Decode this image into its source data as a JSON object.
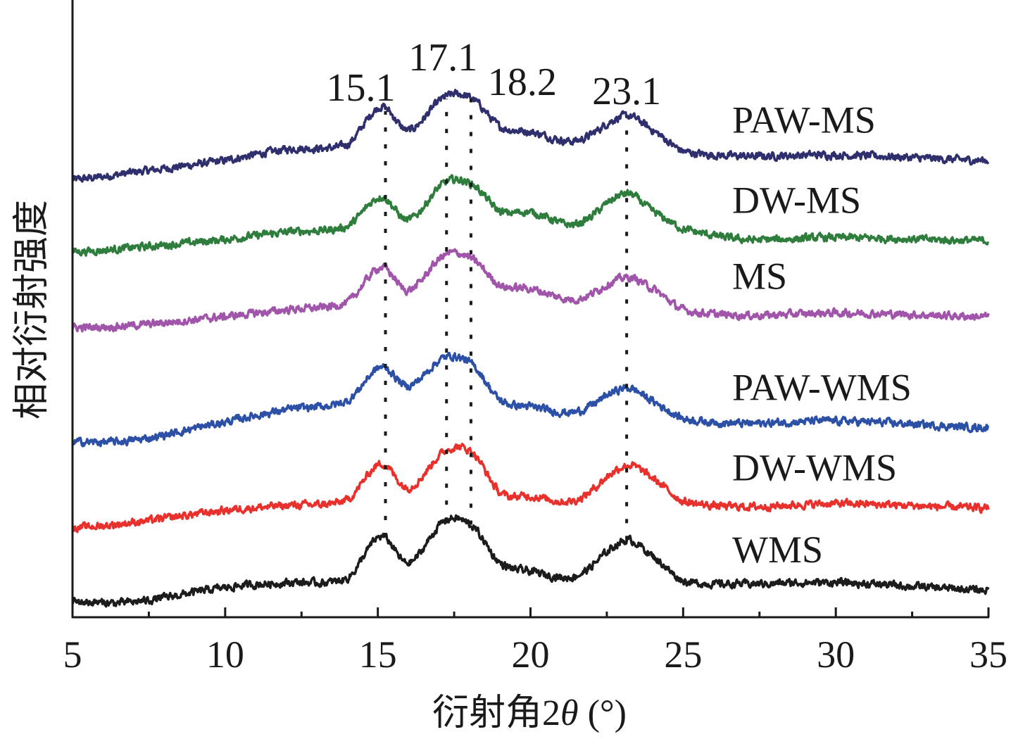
{
  "chart_data": {
    "type": "line",
    "title": "",
    "xlabel": "衍射角2θ (°)",
    "xlabel_parts": {
      "prefix": "衍射角2",
      "theta": "θ",
      "suffix": " (°)"
    },
    "ylabel": "相对衍射强度",
    "xlim": [
      5,
      35
    ],
    "ylim": [
      0,
      100
    ],
    "x_ticks": [
      5,
      10,
      15,
      20,
      25,
      30,
      35
    ],
    "x_tick_labels": [
      "5",
      "10",
      "15",
      "20",
      "25",
      "30",
      "35"
    ],
    "x_minor_ticks": [
      7.5,
      12.5,
      17.5,
      22.5,
      27.5,
      32.5
    ],
    "grid": false,
    "legend": "inline-right",
    "x": [
      5,
      7,
      10,
      12,
      14,
      15.1,
      16,
      17.2,
      18.1,
      19,
      20,
      21.5,
      23.1,
      24,
      25,
      27,
      30,
      35
    ],
    "series": [
      {
        "name": "PAW-MS",
        "color": "#2f2f6e",
        "values": [
          70.9,
          72.1,
          74.0,
          75.8,
          76.6,
          82.7,
          78.9,
          84.3,
          84.0,
          79.5,
          78.6,
          77.2,
          81.2,
          78.9,
          75.5,
          74.7,
          74.9,
          74.0
        ]
      },
      {
        "name": "DW-MS",
        "color": "#2f7d3c",
        "values": [
          59.2,
          59.9,
          61.2,
          62.4,
          63.3,
          68.1,
          64.4,
          70.4,
          70.1,
          65.8,
          65.6,
          63.7,
          68.6,
          65.8,
          62.9,
          61.2,
          61.5,
          61.0
        ]
      },
      {
        "name": "MS",
        "color": "#a055aa",
        "values": [
          46.9,
          47.3,
          48.7,
          49.8,
          51.0,
          56.7,
          53.0,
          58.7,
          58.0,
          53.8,
          53.2,
          51.5,
          55.0,
          53.2,
          49.8,
          48.9,
          49.3,
          48.7
        ]
      },
      {
        "name": "PAW-WMS",
        "color": "#2b50a6",
        "values": [
          28.4,
          28.7,
          31.6,
          33.6,
          35.0,
          40.5,
          37.5,
          42.1,
          40.9,
          35.2,
          34.1,
          33.3,
          37.1,
          35.0,
          32.2,
          31.4,
          31.8,
          30.7
        ]
      },
      {
        "name": "DW-WMS",
        "color": "#e8302c",
        "values": [
          14.5,
          15.4,
          17.3,
          18.1,
          19.0,
          24.9,
          21.0,
          26.9,
          26.7,
          20.2,
          19.6,
          19.0,
          24.5,
          22.5,
          18.8,
          17.9,
          18.4,
          17.7
        ]
      },
      {
        "name": "WMS",
        "color": "#1c1c1c",
        "values": [
          2.5,
          2.5,
          4.8,
          5.6,
          6.3,
          13.1,
          8.8,
          15.6,
          14.7,
          8.8,
          7.4,
          6.7,
          12.4,
          9.9,
          5.9,
          5.4,
          5.6,
          4.4
        ]
      }
    ],
    "annotations": [
      {
        "text": "15.1",
        "line_x": 15.25,
        "line_from": 13.0,
        "line_to": 82.0
      },
      {
        "text": "17.1",
        "line_x": 17.25,
        "line_from": 15.5,
        "line_to": 84.0
      },
      {
        "text": "18.2",
        "line_x": 18.05,
        "line_from": 15.0,
        "line_to": 84.0
      },
      {
        "text": "23.1",
        "line_x": 23.15,
        "line_from": 12.5,
        "line_to": 81.0
      }
    ]
  }
}
